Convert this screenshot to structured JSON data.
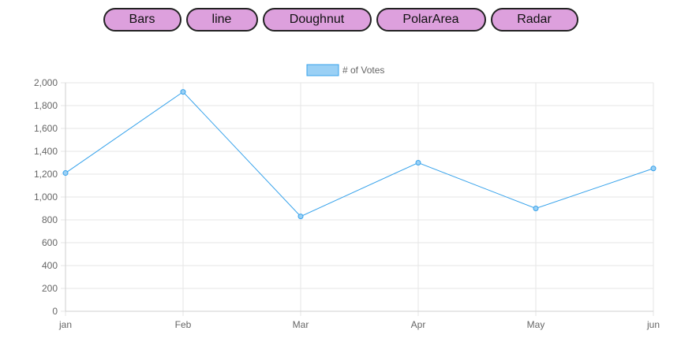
{
  "toolbar": {
    "buttons": [
      {
        "label": "Bars"
      },
      {
        "label": "line"
      },
      {
        "label": "Doughnut"
      },
      {
        "label": "PolarArea"
      },
      {
        "label": "Radar"
      }
    ]
  },
  "colors": {
    "button_bg": "#dda0dd",
    "line": "#36a2eb",
    "point_fill": "#9ad0f5",
    "grid": "#e6e6e6",
    "tick_text": "#666666"
  },
  "chart_data": {
    "type": "line",
    "categories": [
      "jan",
      "Feb",
      "Mar",
      "Apr",
      "May",
      "jun"
    ],
    "series": [
      {
        "name": "# of Votes",
        "values": [
          1210,
          1920,
          830,
          1300,
          900,
          1250
        ]
      }
    ],
    "y_ticks": [
      "0",
      "200",
      "400",
      "600",
      "800",
      "1,000",
      "1,200",
      "1,400",
      "1,600",
      "1,800",
      "2,000"
    ],
    "ylim": [
      0,
      2000
    ],
    "grid": true,
    "legend_position": "top"
  }
}
